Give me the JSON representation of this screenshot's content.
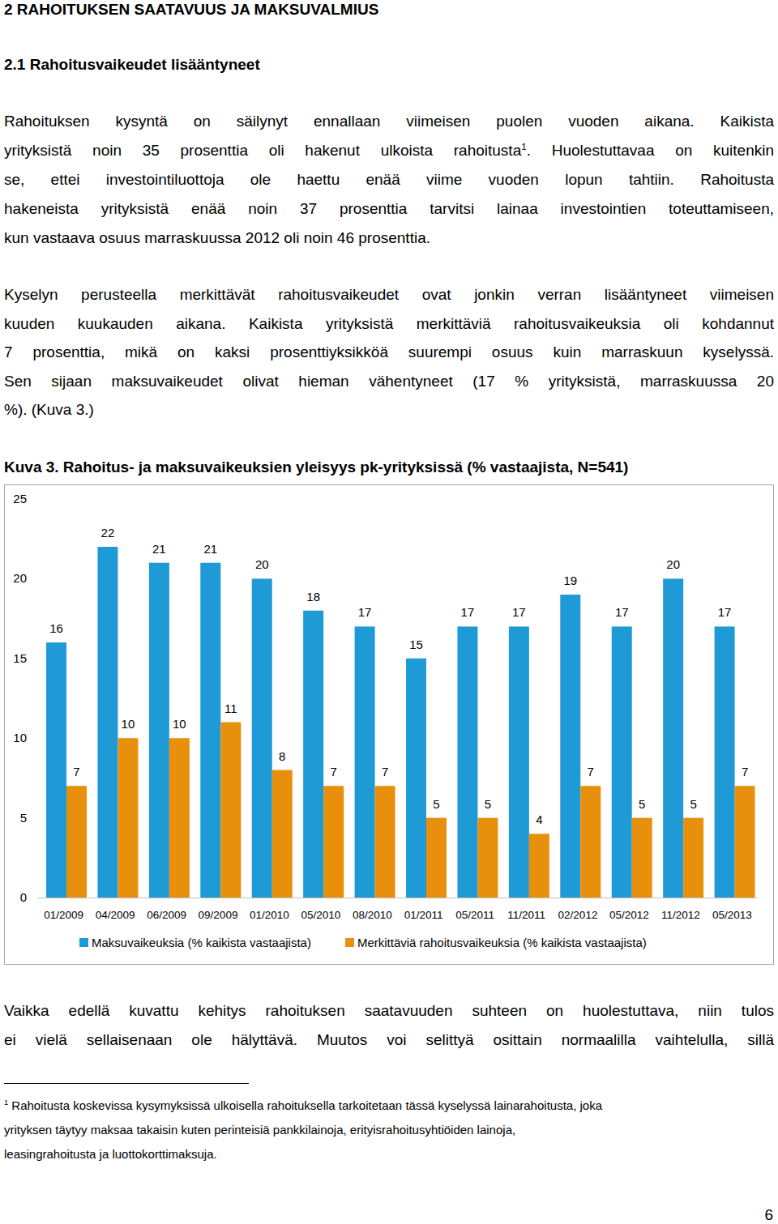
{
  "document": {
    "section_title": "2 RAHOITUKSEN SAATAVUUS JA MAKSUVALMIUS",
    "subsection_title": "2.1 Rahoitusvaikeudet lisääntyneet",
    "paragraphs": [
      {
        "lines": [
          [
            "Rahoituksen kysyntä on säilynyt ennallaan viimeisen puolen vuoden aikana. Kaikista"
          ],
          [
            "yrityksistä noin 35 prosenttia oli hakenut ulkoista rahoitusta",
            {
              "sup": "1"
            },
            ". Huolestuttavaa on kuitenkin"
          ],
          [
            "se, ettei investointiluottoja ole haettu enää viime vuoden lopun tahtiin. Rahoitusta"
          ],
          [
            "hakeneista yrityksistä enää noin 37 prosenttia tarvitsi lainaa investointien toteuttamiseen,"
          ],
          [
            "kun vastaava osuus marraskuussa 2012 oli noin 46 prosenttia."
          ]
        ]
      },
      {
        "lines": [
          [
            "Kyselyn perusteella merkittävät rahoitusvaikeudet ovat jonkin verran lisääntyneet viimeisen"
          ],
          [
            "kuuden kuukauden aikana. Kaikista yrityksistä merkittäviä rahoitusvaikeuksia oli kohdannut"
          ],
          [
            "7 prosenttia, mikä on kaksi prosenttiyksikköä suurempi osuus kuin marraskuun kyselyssä."
          ],
          [
            "Sen sijaan maksuvaikeudet olivat hieman vähentyneet (17 % yrityksistä, marraskuussa 20"
          ],
          [
            "%). (Kuva 3.)"
          ]
        ]
      }
    ],
    "paragraphs_after": [
      {
        "lines": [
          [
            "Vaikka edellä kuvattu kehitys rahoituksen saatavuuden suhteen on huolestuttava, niin tulos"
          ],
          [
            "ei vielä sellaisenaan ole hälyttävä. Muutos voi selittyä osittain normaalilla vaihtelulla, sillä"
          ]
        ]
      }
    ],
    "footnote": {
      "lines": [
        [
          {
            "sup": "1"
          },
          " Rahoitusta koskevissa kysymyksissä ulkoisella rahoituksella tarkoitetaan tässä kyselyssä lainarahoitusta, joka"
        ],
        [
          "yrityksen täytyy maksaa takaisin kuten perinteisiä pankkilainoja, erityisrahoitusyhtiöiden lainoja,"
        ],
        [
          "leasingrahoitusta ja luottokorttimaksuja."
        ]
      ]
    },
    "page_number": 6
  },
  "chart_data": {
    "type": "bar",
    "title": "Kuva 3. Rahoitus- ja maksuvaikeuksien yleisyys pk-yrityksissä (% vastaajista, N=541)",
    "categories": [
      "01/2009",
      "04/2009",
      "06/2009",
      "09/2009",
      "01/2010",
      "05/2010",
      "08/2010",
      "01/2011",
      "05/2011",
      "11/2011",
      "02/2012",
      "05/2012",
      "11/2012",
      "05/2013"
    ],
    "series": [
      {
        "name": "Maksuvaikeuksia (% kaikista vastaajista)",
        "color": "#1e9ad6",
        "values": [
          16,
          22,
          21,
          21,
          20,
          18,
          17,
          15,
          17,
          17,
          19,
          17,
          20,
          17
        ]
      },
      {
        "name": "Merkittäviä rahoitusvaikeuksia (% kaikista vastaajista)",
        "color": "#e8900c",
        "values": [
          7,
          10,
          10,
          11,
          8,
          7,
          7,
          5,
          5,
          4,
          7,
          5,
          5,
          7
        ]
      }
    ],
    "ylim": [
      0,
      25
    ],
    "yticks": [
      0,
      5,
      10,
      15,
      20,
      25
    ],
    "grid": false,
    "data_labels": true,
    "legend": "bottom"
  }
}
